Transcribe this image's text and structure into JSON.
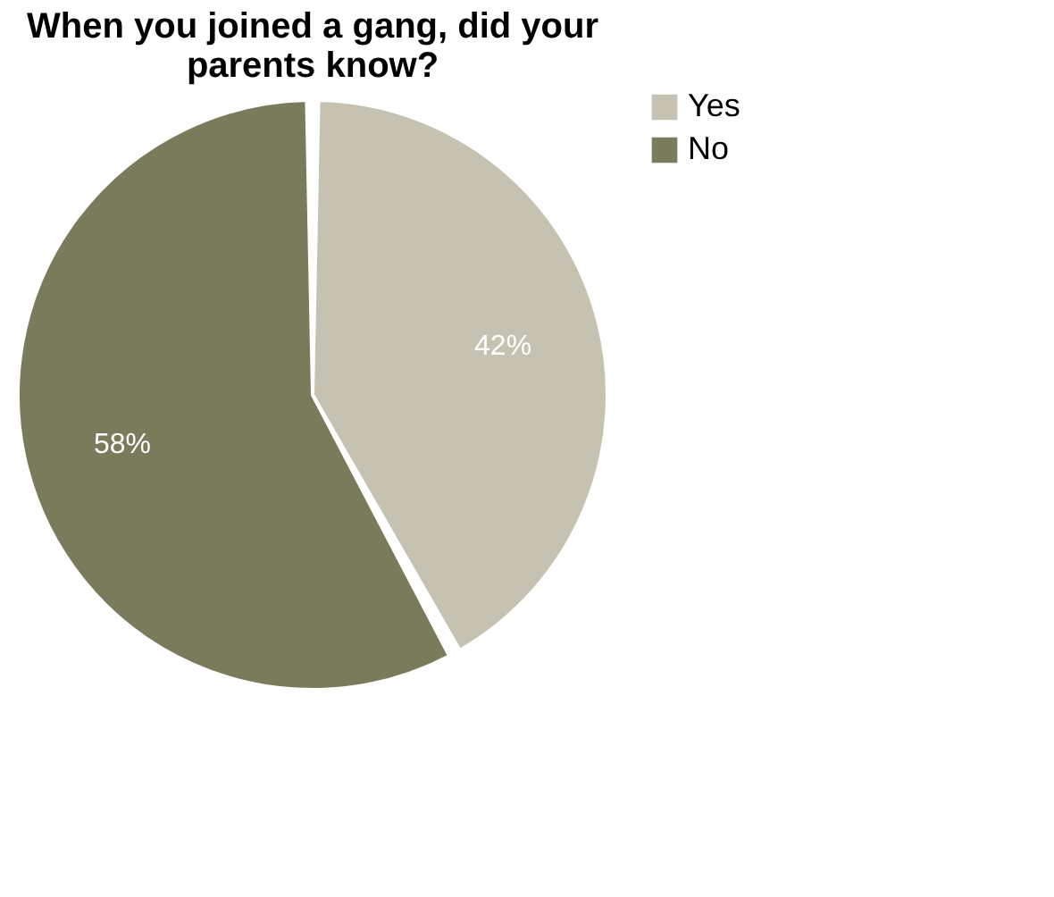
{
  "chart_data": {
    "type": "pie",
    "title": "When you joined a gang, did your\nparents know?",
    "categories": [
      "Yes",
      "No"
    ],
    "values": [
      42,
      58
    ],
    "colors": [
      "#c6c2b1",
      "#7a7b5b"
    ],
    "value_labels": [
      "42%",
      "58%"
    ],
    "legend": "right"
  }
}
